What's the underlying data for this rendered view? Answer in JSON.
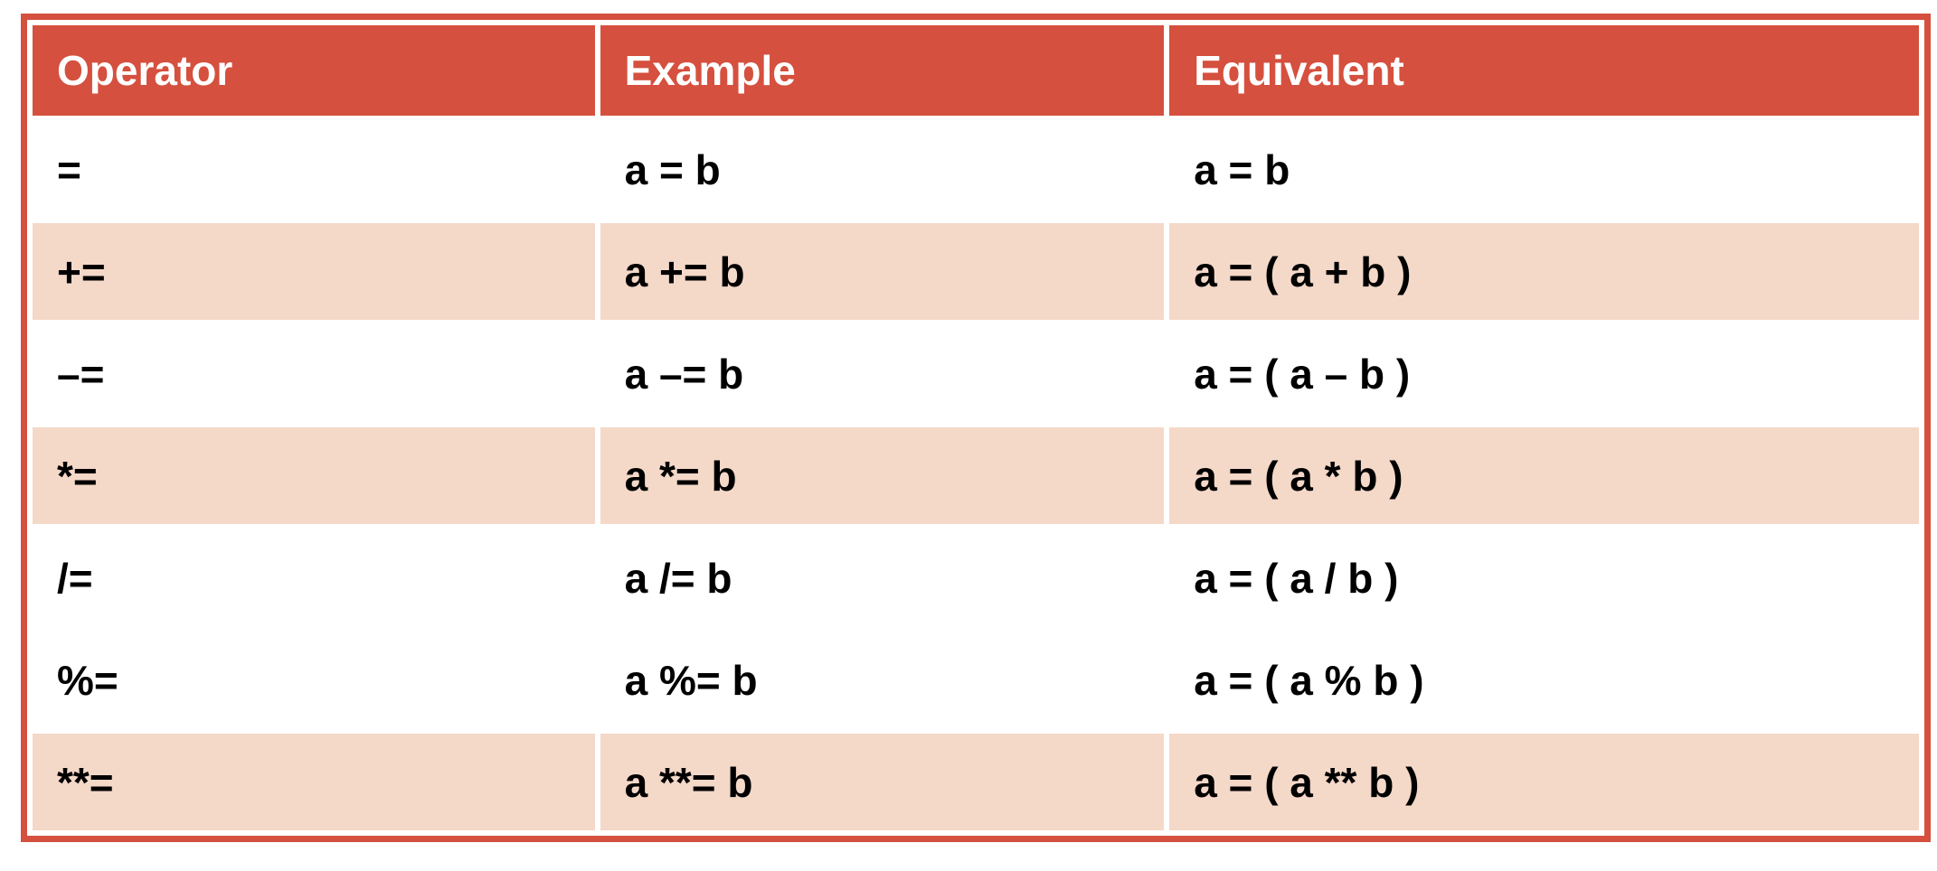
{
  "table": {
    "title": "assignment-operators-table",
    "colors": {
      "header_bg": "#d5503e",
      "border": "#d5503e",
      "shaded_row_bg": "#f4d8c8",
      "header_text": "#ffffff",
      "body_text": "#000000"
    },
    "columns": {
      "operator": "Operator",
      "example": "Example",
      "equivalent": "Equivalent"
    },
    "rows": [
      {
        "operator": "=",
        "example": "a = b",
        "equivalent": "a = b",
        "shaded": false
      },
      {
        "operator": "+=",
        "example": "a += b",
        "equivalent": "a = ( a + b )",
        "shaded": true
      },
      {
        "operator": "–=",
        "example": "a –= b",
        "equivalent": "a = ( a – b )",
        "shaded": false
      },
      {
        "operator": "*=",
        "example": "a *= b",
        "equivalent": "a = ( a * b )",
        "shaded": true
      },
      {
        "operator": "/=",
        "example": "a /= b",
        "equivalent": "a = ( a / b )",
        "shaded": false
      },
      {
        "operator": "%=",
        "example": "a %= b",
        "equivalent": "a = ( a % b )",
        "shaded": false
      },
      {
        "operator": "**=",
        "example": "a **= b",
        "equivalent": "a = ( a ** b )",
        "shaded": true
      }
    ]
  }
}
